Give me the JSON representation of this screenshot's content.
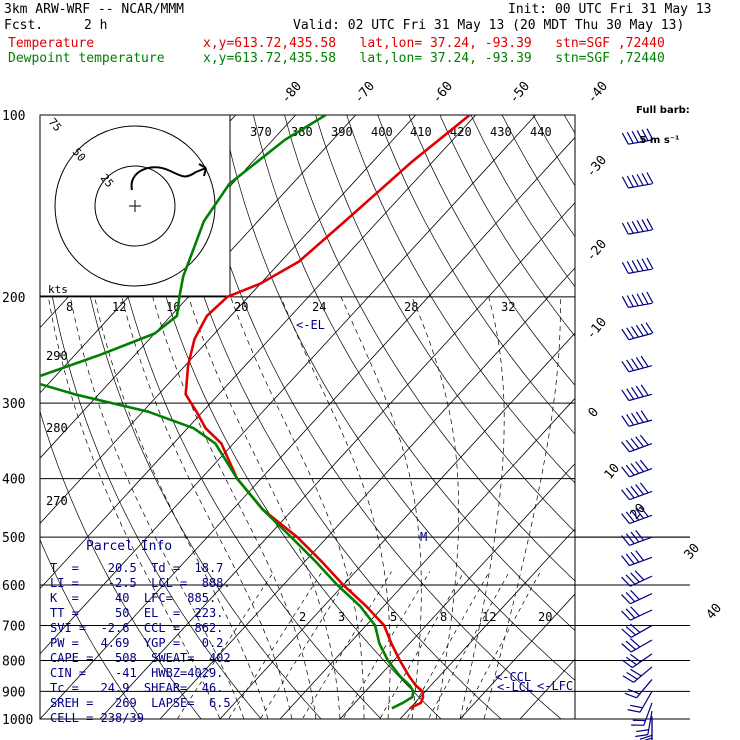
{
  "header": {
    "title": "3km ARW-WRF -- NCAR/MMM",
    "init": "Init: 00 UTC Fri 31 May 13",
    "fcst_label": "Fcst.",
    "fcst_value": "2 h",
    "valid": "Valid: 02 UTC Fri 31 May 13 (20 MDT Thu 30 May 13)",
    "temp_label": "Temperature",
    "dew_label": "Dewpoint temperature",
    "location": "x,y=613.72,435.58   lat,lon= 37.24, -93.39   stn=SGF ,72440"
  },
  "barb_legend": {
    "line1": "Full barb:",
    "line2": " 5 m s⁻¹"
  },
  "parcel": {
    "title": "Parcel Info",
    "rows": [
      "T  =    20.5  Td =  18.7",
      "LI =    -2.5  LCL =  888.",
      "K  =     40  LFC=  885.",
      "TT =     50  EL  =  223.",
      "SVI =  -2.6  CCL =  862.",
      "PW =   4.69  YGP =   0.2",
      "CAPE =   508  SWEAT=  402",
      "CIN =    -41  HWBZ=4029.",
      "Tc =   24.9  SHEAR=  46.",
      "SREH =   269  LAPSE=  6.5",
      "CELL = 238/39"
    ]
  },
  "colors": {
    "temperature": "#e00000",
    "dewpoint": "#008000",
    "isotherm": "#000000",
    "text": "#000080"
  },
  "chart_data": {
    "type": "line",
    "title": "",
    "pressure_levels": [
      100,
      200,
      300,
      400,
      500,
      600,
      700,
      800,
      900,
      1000
    ],
    "isotherm_labels_top": [
      -80,
      -70,
      -60,
      -50,
      -40
    ],
    "isotherm_labels_right": [
      -30,
      -20,
      -10,
      0,
      10,
      20,
      30,
      40
    ],
    "theta_labels": [
      370,
      380,
      390,
      400,
      410,
      420,
      430,
      440
    ],
    "theta_labels_left": [
      290,
      280,
      270
    ],
    "mixing_ratio_labels": [
      2,
      3,
      5,
      8,
      12,
      20
    ],
    "hodograph": {
      "ring_labels": [
        "75",
        "50",
        "25"
      ],
      "axis_unit": "kts",
      "speed_ticks": [
        8,
        12,
        16,
        20,
        24,
        28,
        32
      ]
    },
    "annotations": [
      {
        "text": "<-EL",
        "pressure": 223
      },
      {
        "text": "<-CCL",
        "pressure": 862
      },
      {
        "text": "<-LCL",
        "pressure": 888
      },
      {
        "text": "<-LFC",
        "pressure": 885
      },
      {
        "text": "M",
        "pressure": 500
      }
    ],
    "series": [
      {
        "name": "Temperature",
        "pressure": [
          100,
          120,
          150,
          175,
          190,
          200,
          215,
          235,
          260,
          290,
          310,
          330,
          350,
          400,
          450,
          500,
          550,
          600,
          650,
          700,
          750,
          800,
          850,
          880,
          900,
          920,
          940,
          950,
          960
        ],
        "temperature": [
          -61,
          -63.5,
          -65.5,
          -67,
          -70,
          -73.5,
          -74,
          -72.5,
          -69.5,
          -65.5,
          -61,
          -57,
          -52,
          -44,
          -35,
          -25,
          -17,
          -10,
          -3,
          3,
          7,
          11,
          15,
          17.5,
          19.5,
          20.5,
          21,
          20.5,
          20
        ]
      },
      {
        "name": "Dewpoint temperature",
        "pressure": [
          100,
          110,
          130,
          150,
          170,
          185,
          200,
          215,
          230,
          250,
          275,
          290,
          310,
          330,
          350,
          400,
          450,
          500,
          550,
          600,
          650,
          700,
          750,
          800,
          850,
          880,
          900,
          920,
          940,
          960
        ],
        "temperature": [
          -85,
          -88,
          -90.5,
          -89,
          -86,
          -84,
          -81.5,
          -79,
          -80,
          -86,
          -94,
          -84,
          -69,
          -59,
          -53,
          -44,
          -35,
          -26,
          -18,
          -11,
          -4,
          1.5,
          5,
          9,
          13.5,
          16.5,
          18,
          18.7,
          18,
          17
        ]
      }
    ],
    "wind_barbs": {
      "unit": "m s-1",
      "pressure": [
        110,
        130,
        155,
        180,
        205,
        230,
        260,
        290,
        320,
        350,
        385,
        420,
        460,
        500,
        540,
        580,
        620,
        660,
        700,
        740,
        780,
        820,
        860,
        900,
        940,
        970,
        990,
        1000
      ],
      "speed": [
        30,
        30,
        30,
        30,
        30,
        30,
        25,
        25,
        25,
        25,
        25,
        25,
        25,
        20,
        20,
        20,
        15,
        15,
        15,
        15,
        15,
        15,
        12,
        12,
        10,
        10,
        12,
        12
      ],
      "direction": [
        260,
        260,
        260,
        260,
        260,
        255,
        255,
        255,
        255,
        250,
        250,
        250,
        250,
        250,
        250,
        245,
        245,
        245,
        240,
        240,
        235,
        230,
        220,
        210,
        200,
        190,
        180,
        180
      ]
    }
  }
}
